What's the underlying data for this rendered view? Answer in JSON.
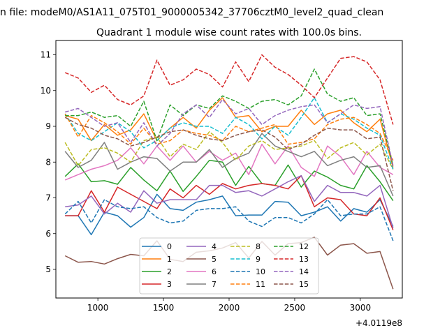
{
  "figure": {
    "suptitle": "n file: modeM0/AS1A11_075T01_9000005342_37706cztM0_level2_quad_clean"
  },
  "chart_data": {
    "type": "line",
    "title": "Quadrant 1 module wise count rates with 100.0s bins.",
    "xlabel": "",
    "ylabel": "",
    "x_offset_text": "+4.0119e8",
    "xlim": [
      680,
      3320
    ],
    "ylim": [
      4.2,
      11.4
    ],
    "xticks": [
      1000,
      1500,
      2000,
      2500,
      3000
    ],
    "yticks": [
      5,
      6,
      7,
      8,
      9,
      10,
      11
    ],
    "grid": false,
    "legend": {
      "placement": "lower center",
      "ncol": 4
    },
    "x": [
      750,
      850,
      950,
      1050,
      1150,
      1250,
      1350,
      1450,
      1550,
      1650,
      1750,
      1850,
      1950,
      2050,
      2150,
      2250,
      2350,
      2450,
      2550,
      2650,
      2750,
      2850,
      2950,
      3050,
      3150,
      3250
    ],
    "series": [
      {
        "name": "0",
        "color": "#1f77b4",
        "dash": "solid",
        "values": [
          6.5,
          6.5,
          5.97,
          6.6,
          6.5,
          6.18,
          6.45,
          7.1,
          6.7,
          6.65,
          6.88,
          6.95,
          7.05,
          6.5,
          6.52,
          6.52,
          6.9,
          6.88,
          6.5,
          6.6,
          6.75,
          6.35,
          6.7,
          6.6,
          6.95,
          6.2
        ]
      },
      {
        "name": "1",
        "color": "#ff7f0e",
        "dash": "solid",
        "values": [
          9.3,
          9.2,
          8.6,
          9.05,
          8.75,
          8.9,
          9.35,
          8.6,
          8.95,
          9.25,
          8.95,
          9.45,
          9.8,
          9.25,
          9.3,
          8.85,
          9.0,
          9.0,
          9.45,
          9.05,
          9.35,
          9.45,
          9.1,
          8.85,
          9.2,
          7.85
        ]
      },
      {
        "name": "2",
        "color": "#2ca02c",
        "dash": "solid",
        "values": [
          7.6,
          7.95,
          7.45,
          7.48,
          7.38,
          7.85,
          7.5,
          7.2,
          7.75,
          7.18,
          7.6,
          8.05,
          8.0,
          7.35,
          7.88,
          7.4,
          7.35,
          7.92,
          7.3,
          7.75,
          7.58,
          7.35,
          7.25,
          7.9,
          7.45,
          6.92
        ]
      },
      {
        "name": "3",
        "color": "#d62728",
        "dash": "solid",
        "values": [
          6.5,
          6.5,
          7.2,
          6.6,
          7.3,
          7.1,
          6.9,
          6.7,
          7.25,
          7.0,
          7.35,
          7.1,
          7.4,
          7.25,
          7.35,
          7.4,
          7.35,
          7.25,
          7.62,
          6.75,
          7.0,
          6.95,
          6.55,
          6.5,
          7.0,
          6.1
        ]
      },
      {
        "name": "4",
        "color": "#9467bd",
        "dash": "solid",
        "values": [
          6.75,
          6.8,
          7.05,
          6.55,
          6.85,
          6.6,
          7.2,
          6.85,
          6.95,
          6.95,
          6.95,
          7.35,
          7.35,
          7.15,
          7.2,
          7.05,
          7.25,
          7.45,
          7.62,
          6.9,
          7.35,
          7.15,
          7.15,
          7.05,
          7.35,
          6.15
        ]
      },
      {
        "name": "5",
        "color": "#8c564b",
        "dash": "solid",
        "values": [
          5.38,
          5.2,
          5.22,
          5.15,
          5.3,
          5.42,
          5.38,
          5.8,
          5.28,
          5.22,
          5.48,
          5.52,
          5.6,
          5.75,
          5.32,
          5.78,
          5.4,
          5.72,
          5.75,
          5.9,
          5.4,
          5.68,
          5.72,
          5.45,
          5.5,
          4.45
        ]
      },
      {
        "name": "6",
        "color": "#e377c2",
        "dash": "solid",
        "values": [
          7.5,
          7.65,
          7.8,
          7.9,
          8.05,
          8.4,
          7.95,
          8.45,
          8.05,
          8.45,
          8.0,
          8.3,
          8.05,
          8.25,
          7.65,
          8.5,
          7.95,
          8.45,
          7.85,
          7.6,
          8.45,
          8.15,
          7.65,
          8.3,
          7.85,
          7.65
        ]
      },
      {
        "name": "7",
        "color": "#7f7f7f",
        "dash": "solid",
        "values": [
          8.3,
          7.85,
          8.05,
          8.55,
          7.8,
          8.0,
          8.15,
          8.1,
          7.75,
          8.0,
          8.0,
          8.35,
          7.85,
          8.1,
          8.25,
          8.8,
          8.45,
          8.3,
          8.15,
          8.3,
          7.9,
          8.05,
          8.15,
          7.85,
          7.9,
          7.05
        ]
      },
      {
        "name": "8",
        "color": "#bcbd22",
        "dash": "dashed",
        "values": [
          8.55,
          7.9,
          8.35,
          8.4,
          8.25,
          8.0,
          8.6,
          8.7,
          8.15,
          8.5,
          8.35,
          8.85,
          8.55,
          8.05,
          8.45,
          8.6,
          8.35,
          8.4,
          8.45,
          8.6,
          8.1,
          8.4,
          8.55,
          8.2,
          8.5,
          7.8
        ]
      },
      {
        "name": "9",
        "color": "#17becf",
        "dash": "dashed",
        "values": [
          9.35,
          8.8,
          8.6,
          8.85,
          9.1,
          8.85,
          8.4,
          8.6,
          8.95,
          9.1,
          9.0,
          9.0,
          8.8,
          9.25,
          9.05,
          8.65,
          9.0,
          8.75,
          9.25,
          9.8,
          9.1,
          9.35,
          9.2,
          8.95,
          8.75,
          7.8
        ]
      },
      {
        "name": "10",
        "color": "#1f77b4",
        "dash": "dashed",
        "values": [
          6.55,
          6.9,
          6.3,
          6.95,
          6.75,
          6.7,
          6.75,
          6.45,
          6.3,
          6.35,
          6.65,
          6.7,
          6.7,
          6.75,
          6.35,
          6.2,
          6.45,
          6.45,
          6.3,
          6.55,
          6.95,
          6.5,
          6.55,
          6.55,
          6.75,
          5.8
        ]
      },
      {
        "name": "11",
        "color": "#ff7f0e",
        "dash": "dashed",
        "values": [
          9.35,
          8.7,
          9.3,
          9.1,
          8.85,
          8.5,
          8.95,
          8.5,
          8.6,
          8.9,
          8.8,
          8.75,
          8.6,
          9.0,
          8.85,
          8.95,
          9.05,
          8.5,
          8.55,
          8.65,
          9.05,
          9.2,
          9.25,
          9.05,
          8.8,
          8.05
        ]
      },
      {
        "name": "12",
        "color": "#2ca02c",
        "dash": "dashed",
        "values": [
          9.3,
          9.3,
          9.4,
          9.25,
          9.3,
          9.0,
          9.7,
          8.6,
          9.6,
          9.3,
          9.6,
          9.5,
          9.85,
          9.7,
          9.5,
          9.7,
          9.75,
          9.6,
          9.85,
          10.6,
          9.9,
          9.7,
          9.8,
          9.3,
          9.35,
          7.9
        ]
      },
      {
        "name": "13",
        "color": "#d62728",
        "dash": "dashed",
        "values": [
          10.5,
          10.35,
          9.95,
          10.15,
          9.75,
          9.6,
          9.85,
          10.85,
          10.15,
          10.3,
          10.6,
          10.45,
          10.1,
          10.8,
          10.25,
          11.0,
          10.65,
          10.45,
          10.15,
          9.8,
          10.35,
          10.9,
          10.95,
          10.8,
          10.3,
          9.05
        ]
      },
      {
        "name": "14",
        "color": "#9467bd",
        "dash": "dashed",
        "values": [
          9.4,
          9.5,
          9.25,
          9.0,
          9.1,
          8.55,
          9.1,
          8.45,
          8.8,
          9.35,
          9.6,
          9.25,
          9.75,
          9.35,
          9.5,
          9.05,
          9.3,
          9.45,
          9.55,
          9.6,
          9.1,
          9.35,
          9.6,
          9.5,
          9.55,
          7.9
        ]
      },
      {
        "name": "15",
        "color": "#8c564b",
        "dash": "dashed",
        "values": [
          9.25,
          9.05,
          8.95,
          8.75,
          8.65,
          8.45,
          8.55,
          8.7,
          8.85,
          8.9,
          8.75,
          8.65,
          8.6,
          8.75,
          8.85,
          8.9,
          8.7,
          8.35,
          8.5,
          8.75,
          8.95,
          8.9,
          8.9,
          8.65,
          8.7,
          7.2
        ]
      }
    ]
  }
}
